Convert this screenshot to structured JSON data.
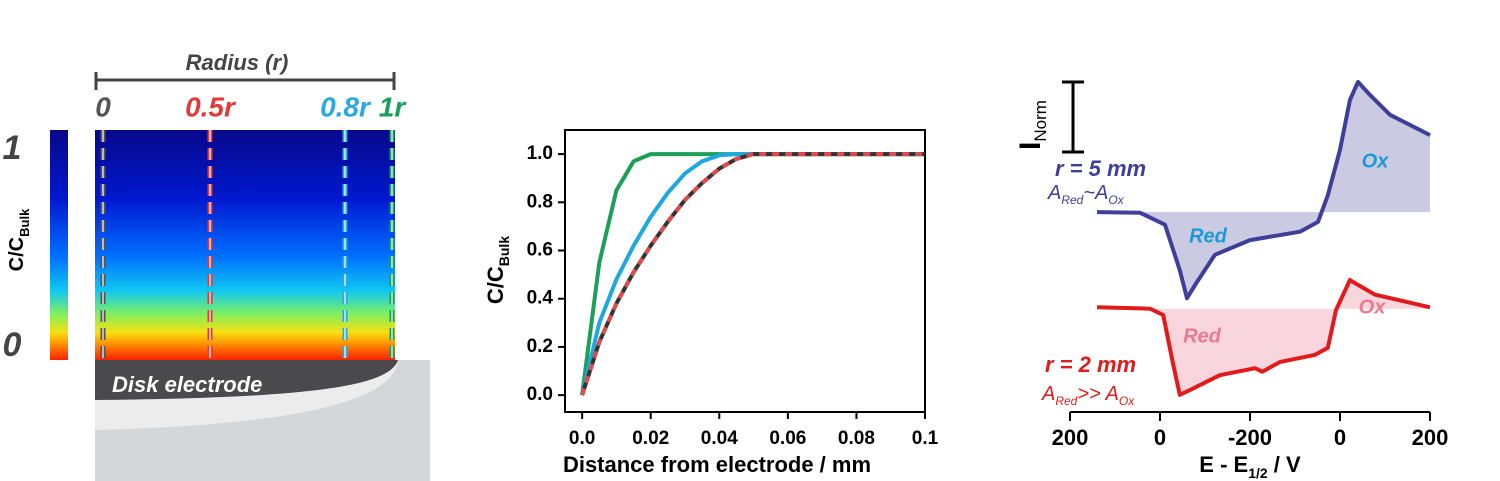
{
  "chart_data": [
    {
      "type": "heatmap",
      "title": "Radius (r)",
      "positions": [
        "0",
        "0.5r",
        "0.8r",
        "1r"
      ],
      "position_colors": [
        "#555555",
        "#e03a3a",
        "#2aa8e0",
        "#1aa058"
      ],
      "colorbar_label": "C/C",
      "colorbar_label_sub": "Bulk",
      "clim": [
        0,
        1
      ],
      "cticks": [
        0,
        1
      ],
      "annotation": "Disk electrode"
    },
    {
      "type": "line",
      "x": [
        0,
        0.005,
        0.01,
        0.015,
        0.02,
        0.025,
        0.03,
        0.035,
        0.04,
        0.045,
        0.05,
        0.055,
        0.06,
        0.065,
        0.07,
        0.075,
        0.08,
        0.085,
        0.09,
        0.095,
        0.1
      ],
      "series": [
        {
          "color": "#1aa058",
          "dash": false,
          "values": [
            0,
            0.55,
            0.85,
            0.97,
            1.0,
            1.0,
            1.0,
            1.0,
            1.0,
            1.0,
            1.0,
            1.0,
            1.0,
            1.0,
            1.0,
            1.0,
            1.0,
            1.0,
            1.0,
            1.0,
            1.0
          ]
        },
        {
          "color": "#1ea7e1",
          "dash": false,
          "values": [
            0,
            0.3,
            0.48,
            0.62,
            0.74,
            0.84,
            0.92,
            0.97,
            0.995,
            1.0,
            1.0,
            1.0,
            1.0,
            1.0,
            1.0,
            1.0,
            1.0,
            1.0,
            1.0,
            1.0,
            1.0
          ]
        },
        {
          "color": "#333333",
          "dash": false,
          "values": [
            0,
            0.22,
            0.38,
            0.51,
            0.62,
            0.72,
            0.81,
            0.88,
            0.94,
            0.98,
            1.0,
            1.0,
            1.0,
            1.0,
            1.0,
            1.0,
            1.0,
            1.0,
            1.0,
            1.0,
            1.0
          ]
        },
        {
          "color": "#e04a4a",
          "dash": true,
          "values": [
            0,
            0.22,
            0.38,
            0.51,
            0.62,
            0.72,
            0.81,
            0.88,
            0.94,
            0.98,
            1.0,
            1.0,
            1.0,
            1.0,
            1.0,
            1.0,
            1.0,
            1.0,
            1.0,
            1.0,
            1.0
          ]
        }
      ],
      "xlim": [
        -0.005,
        0.1
      ],
      "ylim": [
        -0.07,
        1.1
      ],
      "xticks": [
        {
          "value": 0,
          "label": "0.0"
        },
        0.02,
        0.04,
        0.06,
        0.08,
        0.1
      ],
      "yticks": [
        {
          "value": 0,
          "label": "0.0"
        },
        0.2,
        0.4,
        0.6,
        0.8,
        {
          "value": 1,
          "label": "1.0"
        }
      ],
      "xlabel": "Distance from electrode / mm",
      "ylabel": "C/C",
      "ylabel_sub": "Bulk"
    },
    {
      "type": "cv",
      "xlim": [
        0,
        800
      ],
      "xticks": [
        {
          "value": 0,
          "label": "200"
        },
        {
          "value": 200,
          "label": "0"
        },
        {
          "value": 400,
          "label": "-200"
        },
        {
          "value": 600,
          "label": "0"
        },
        {
          "value": 800,
          "label": "200"
        }
      ],
      "ylim": [
        -3,
        2
      ],
      "xlabel": "E - E",
      "xlabel_sub": "1/2",
      "xlabel_suffix": " / V",
      "scalebar": 1,
      "scalebar_label": "I",
      "scalebar_label_sub": "Norm",
      "series": [
        {
          "name": "r = 5 mm",
          "color": "#3f3f9a",
          "fill": "rgba(63,63,154,0.28)",
          "area_label": [
            "A",
            "Red",
            "~A",
            "Ox"
          ],
          "peak_labels": [
            "Red",
            "Ox"
          ],
          "peak_label_color": "#1a9ad6",
          "baseline": -0.03,
          "x": [
            60,
            156,
            211,
            244,
            260,
            278,
            322,
            400,
            511,
            551,
            573,
            600,
            622,
            640,
            667,
            711,
            800
          ],
          "values": [
            -0.03,
            -0.04,
            -0.21,
            -0.86,
            -1.26,
            -1.07,
            -0.64,
            -0.43,
            -0.31,
            -0.17,
            0.21,
            0.86,
            1.57,
            1.83,
            1.64,
            1.36,
            1.07
          ]
        },
        {
          "name": "r = 2 mm",
          "color": "#e11b1b",
          "fill": "rgba(240,150,170,0.4)",
          "area_label": [
            "A",
            "Red",
            ">> A",
            "Ox"
          ],
          "peak_labels": [
            "Red",
            "Ox"
          ],
          "peak_label_color": "#e87a92",
          "baseline": -1.41,
          "x": [
            60,
            178,
            207,
            227,
            244,
            267,
            333,
            411,
            427,
            467,
            544,
            573,
            591,
            622,
            640,
            678,
            800
          ],
          "values": [
            -1.39,
            -1.41,
            -1.5,
            -2.14,
            -2.64,
            -2.57,
            -2.36,
            -2.26,
            -2.31,
            -2.17,
            -2.07,
            -1.97,
            -1.43,
            -1.0,
            -1.07,
            -1.21,
            -1.39
          ]
        }
      ]
    }
  ]
}
